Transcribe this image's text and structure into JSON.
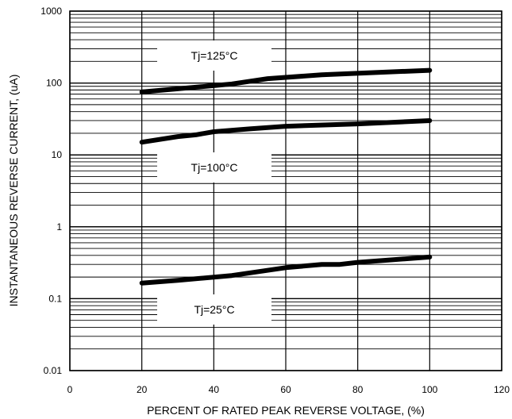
{
  "chart_data": {
    "type": "line",
    "xlabel": "PERCENT OF RATED PEAK REVERSE VOLTAGE, (%)",
    "ylabel": "INSTANTANEOUS REVERSE CURRENT, (uA)",
    "xlim": [
      0,
      120
    ],
    "ylim": [
      0.01,
      1000
    ],
    "yscale": "log",
    "grid": true,
    "x_ticks": [
      0,
      20,
      40,
      60,
      80,
      100,
      120
    ],
    "x_tick_labels": [
      "0",
      "20",
      "40",
      "60",
      "80",
      "100",
      "120"
    ],
    "y_ticks": [
      0.01,
      0.1,
      1,
      10,
      100,
      1000
    ],
    "y_tick_labels": [
      "0.01",
      "0.1",
      "1",
      "10",
      "100",
      "1000"
    ],
    "series": [
      {
        "name": "Tj=125°C",
        "x": [
          20,
          30,
          40,
          45,
          55,
          70,
          85,
          100
        ],
        "y": [
          75,
          83,
          92,
          97,
          115,
          130,
          140,
          150
        ]
      },
      {
        "name": "Tj=100°C",
        "x": [
          20,
          30,
          35,
          40,
          50,
          60,
          80,
          100
        ],
        "y": [
          15,
          18,
          19,
          21,
          23,
          25,
          27,
          30
        ]
      },
      {
        "name": "Tj=25°C",
        "x": [
          20,
          30,
          45,
          60,
          70,
          75,
          80,
          100
        ],
        "y": [
          0.165,
          0.18,
          0.21,
          0.27,
          0.3,
          0.3,
          0.32,
          0.38
        ]
      }
    ],
    "annotations": [
      {
        "text": "Tj=125°C",
        "series": 0
      },
      {
        "text": "Tj=100°C",
        "series": 1
      },
      {
        "text": "Tj=25°C",
        "series": 2
      }
    ]
  }
}
